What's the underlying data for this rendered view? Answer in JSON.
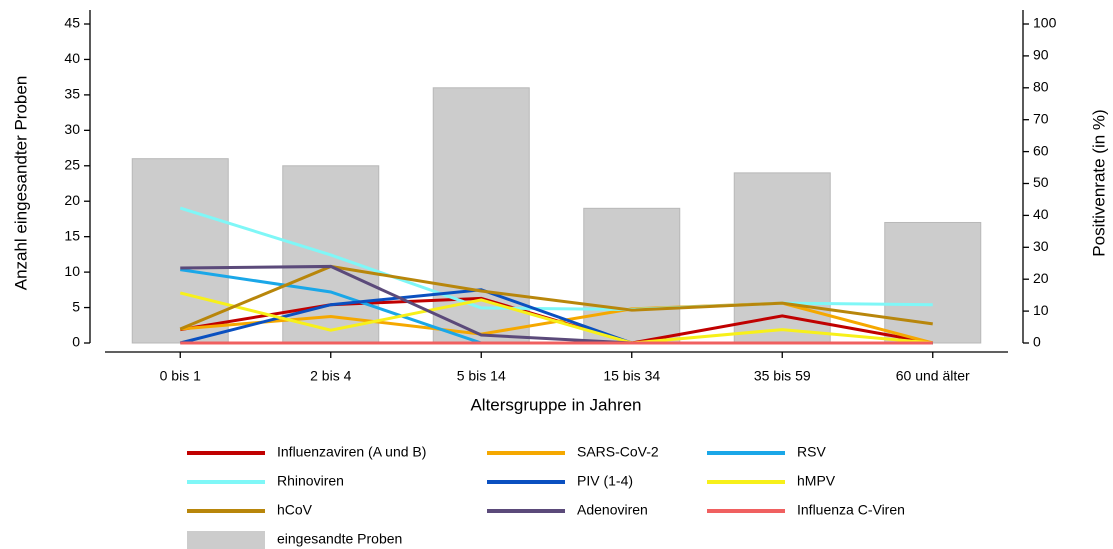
{
  "chart_data": {
    "type": "combo",
    "x_label": "Altersgruppe in Jahren",
    "y_label": "Anzahl eingesandter Proben",
    "y2_label": "Positivenrate (in %)",
    "categories": [
      "0 bis 1",
      "2 bis 4",
      "5 bis 14",
      "15 bis 34",
      "35 bis 59",
      "60 und älter"
    ],
    "ylim": [
      0,
      45
    ],
    "yticks": [
      0,
      5,
      10,
      15,
      20,
      25,
      30,
      35,
      40,
      45
    ],
    "y2lim": [
      0,
      100
    ],
    "y2ticks": [
      0,
      10,
      20,
      30,
      40,
      50,
      60,
      70,
      80,
      90,
      100
    ],
    "series": [
      {
        "name": "Influenzaviren (A und B)",
        "color": "#c00000",
        "axis": "y2",
        "values": [
          4.2,
          12,
          14,
          0,
          8.5,
          0
        ]
      },
      {
        "name": "SARS-CoV-2",
        "color": "#f5a800",
        "axis": "y2",
        "values": [
          4.4,
          8.3,
          2.8,
          10.7,
          12.5,
          0
        ]
      },
      {
        "name": "RSV",
        "color": "#1aa7e8",
        "axis": "y2",
        "values": [
          23,
          16,
          0,
          0,
          0,
          0
        ]
      },
      {
        "name": "Rhinoviren",
        "color": "#7ff7f7",
        "axis": "y2",
        "values": [
          42.3,
          27.6,
          11,
          10.5,
          12.5,
          12
        ]
      },
      {
        "name": "PIV (1-4)",
        "color": "#0a50c0",
        "axis": "y2",
        "values": [
          0,
          12,
          16.7,
          0,
          0,
          0
        ]
      },
      {
        "name": "hMPV",
        "color": "#f7f01a",
        "axis": "y2",
        "values": [
          15.7,
          4,
          13.5,
          0,
          4.2,
          0
        ]
      },
      {
        "name": "hCoV",
        "color": "#b8860b",
        "axis": "y2",
        "values": [
          4.4,
          24,
          16.3,
          10.3,
          12.5,
          6
        ]
      },
      {
        "name": "Adenoviren",
        "color": "#5b4a7a",
        "axis": "y2",
        "values": [
          23.5,
          24,
          2.5,
          0,
          0,
          0
        ]
      },
      {
        "name": "Influenza C-Viren",
        "color": "#f06060",
        "axis": "y2",
        "values": [
          0,
          0,
          0,
          0,
          0,
          0
        ]
      },
      {
        "name": "eingesandte Proben",
        "color": "#cccccc",
        "type": "bar",
        "values": [
          26,
          25,
          36,
          19,
          24,
          17
        ]
      }
    ]
  }
}
